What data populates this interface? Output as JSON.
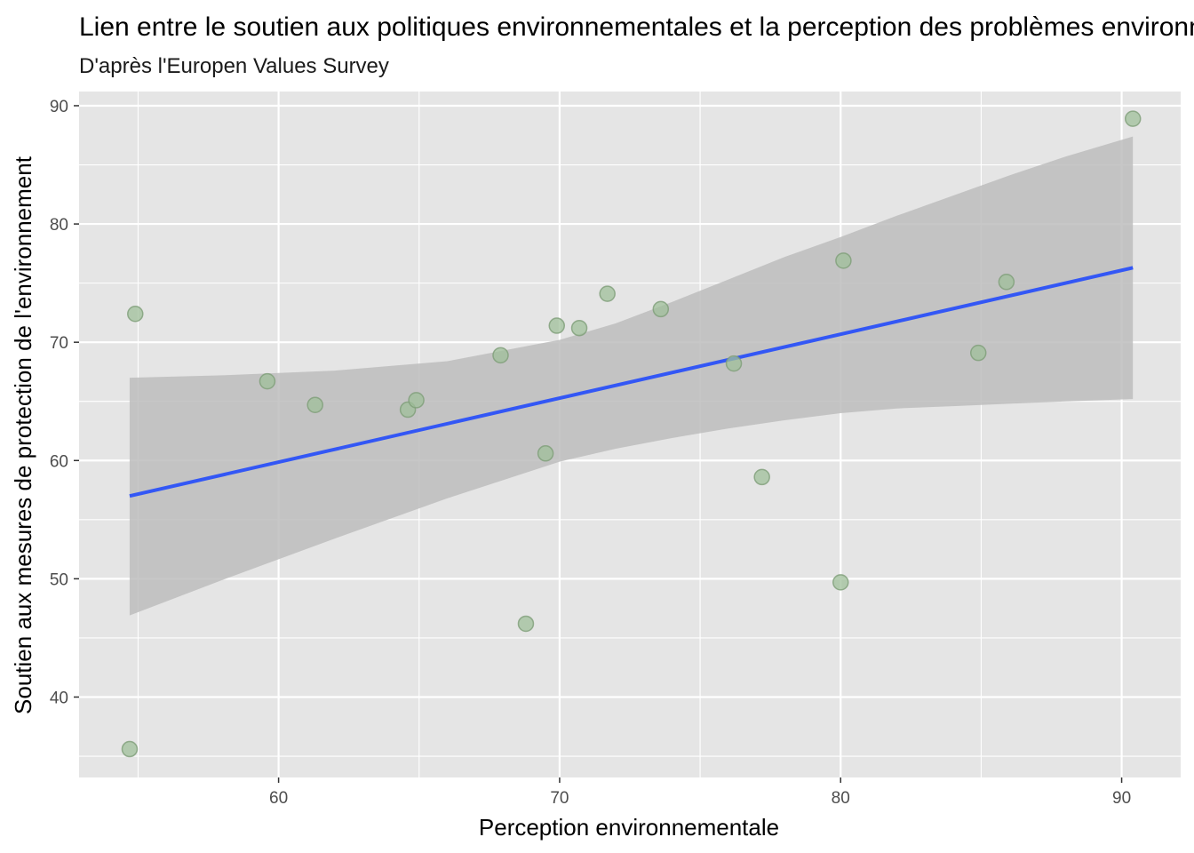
{
  "chart_data": {
    "type": "scatter",
    "title": "Lien entre le soutien aux politiques environnementales et la perception des problèmes environnementaux",
    "subtitle": "D'après l'Europen Values Survey",
    "xlabel": "Perception environnementale",
    "ylabel": "Soutien aux mesures de protection de l'environnement",
    "xlim": [
      52.9,
      92.1
    ],
    "ylim": [
      33.2,
      91.2
    ],
    "x_ticks": [
      60,
      70,
      80,
      90
    ],
    "x_tick_labels": [
      "60",
      "70",
      "80",
      "90"
    ],
    "y_ticks": [
      40,
      50,
      60,
      70,
      80,
      90
    ],
    "y_tick_labels": [
      "40",
      "50",
      "60",
      "70",
      "80",
      "90"
    ],
    "grid": true,
    "points": [
      {
        "x": 54.7,
        "y": 35.6
      },
      {
        "x": 54.9,
        "y": 72.4
      },
      {
        "x": 59.6,
        "y": 66.7
      },
      {
        "x": 61.3,
        "y": 64.7
      },
      {
        "x": 64.6,
        "y": 64.3
      },
      {
        "x": 64.9,
        "y": 65.1
      },
      {
        "x": 67.9,
        "y": 68.9
      },
      {
        "x": 68.8,
        "y": 46.2
      },
      {
        "x": 69.5,
        "y": 60.6
      },
      {
        "x": 69.9,
        "y": 71.4
      },
      {
        "x": 70.7,
        "y": 71.2
      },
      {
        "x": 71.7,
        "y": 74.1
      },
      {
        "x": 73.6,
        "y": 72.8
      },
      {
        "x": 76.2,
        "y": 68.2
      },
      {
        "x": 77.2,
        "y": 58.6
      },
      {
        "x": 80.0,
        "y": 49.7
      },
      {
        "x": 80.1,
        "y": 76.9
      },
      {
        "x": 84.9,
        "y": 69.1
      },
      {
        "x": 85.9,
        "y": 75.1
      },
      {
        "x": 90.4,
        "y": 88.9
      }
    ],
    "trend_line": {
      "x_start": 54.7,
      "y_start": 57.0,
      "x_end": 90.4,
      "y_end": 76.3
    },
    "confidence_band": {
      "x": [
        54.7,
        58,
        62,
        66,
        70,
        72,
        74,
        76,
        78,
        80,
        82,
        84,
        86,
        88,
        90.4
      ],
      "upper": [
        67.0,
        67.2,
        67.6,
        68.4,
        70.2,
        71.6,
        73.4,
        75.3,
        77.2,
        78.9,
        80.7,
        82.4,
        84.1,
        85.7,
        87.4
      ],
      "lower": [
        46.9,
        49.9,
        53.4,
        56.8,
        59.9,
        61.0,
        61.9,
        62.7,
        63.4,
        64.0,
        64.4,
        64.6,
        64.8,
        65.0,
        65.2
      ]
    },
    "colors": {
      "panel": "#e5e5e5",
      "grid_major": "#ffffff",
      "point_fill": "#9fbf9a",
      "point_stroke": "#7e9e78",
      "trend_line": "#3357f5",
      "band": "#bdbdbd",
      "tick": "#333333"
    }
  }
}
